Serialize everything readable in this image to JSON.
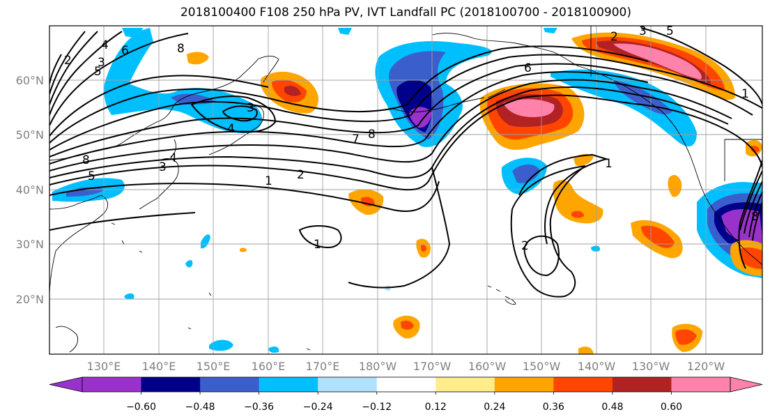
{
  "title": "2018100400 F108 250 hPa PV, IVT Landfall PC (2018100700 - 2018100900)",
  "lon_labels": [
    "130°E",
    "140°E",
    "150°E",
    "160°E",
    "170°E",
    "180°W",
    "170°W",
    "160°W",
    "150°W",
    "140°W",
    "130°W",
    "120°W"
  ],
  "lat_labels": [
    "60°N",
    "50°N",
    "40°N",
    "30°N",
    "20°N"
  ],
  "colorbar": {
    "colors": [
      "#9932cc",
      "#00008b",
      "#3a5fcd",
      "#00bfff",
      "#b0e2ff",
      "#ffffff",
      "#ffec8b",
      "#ffa500",
      "#ff4500",
      "#b22222",
      "#ff82ab"
    ],
    "labels": [
      "−0.60",
      "−0.48",
      "−0.36",
      "−0.24",
      "−0.12",
      "0.12",
      "0.24",
      "0.36",
      "0.48",
      "0.60"
    ]
  },
  "contour_labels": [
    "2",
    "4",
    "3",
    "5",
    "6",
    "8",
    "3",
    "4",
    "7",
    "8",
    "8",
    "5",
    "3",
    "4",
    "2",
    "1",
    "1",
    "6",
    "1",
    "2",
    "1",
    "2",
    "3",
    "5",
    "8"
  ]
}
